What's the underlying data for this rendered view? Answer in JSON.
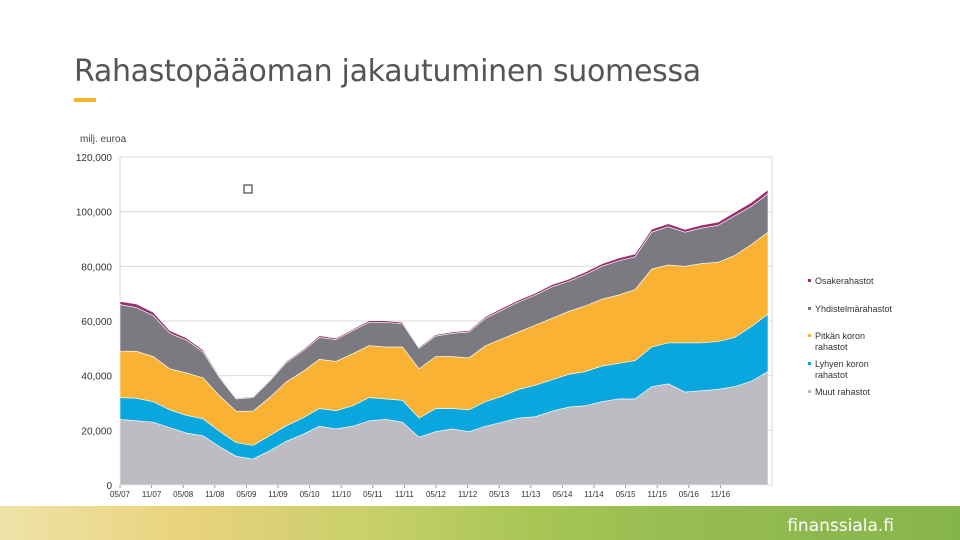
{
  "page": {
    "title": "Rahastopääoman jakautuminen suomessa",
    "unit_label": "milj. euroa",
    "brand": "finanssiala.fi",
    "accent_color": "#f1b52e"
  },
  "chart_data": {
    "type": "area",
    "stacked": true,
    "ylim": [
      0,
      120000
    ],
    "yticks": [
      "0",
      "20,000",
      "40,000",
      "60,000",
      "80,000",
      "100,000",
      "120,000"
    ],
    "ytick_values": [
      0,
      20000,
      40000,
      60000,
      80000,
      100000,
      120000
    ],
    "x_ticks": [
      "05/07",
      "11/07",
      "05/08",
      "11/08",
      "05/09",
      "11/09",
      "05/10",
      "11/10",
      "05/11",
      "11/11",
      "05/12",
      "11/12",
      "05/13",
      "11/13",
      "05/14",
      "11/14",
      "05/15",
      "11/15",
      "05/16",
      "11/16"
    ],
    "grid": true,
    "legend_position": "right",
    "x": [
      "05/07",
      "08/07",
      "11/07",
      "02/08",
      "05/08",
      "08/08",
      "11/08",
      "02/09",
      "05/09",
      "08/09",
      "11/09",
      "02/10",
      "05/10",
      "08/10",
      "11/10",
      "02/11",
      "05/11",
      "08/11",
      "11/11",
      "02/12",
      "05/12",
      "08/12",
      "11/12",
      "02/13",
      "05/13",
      "08/13",
      "11/13",
      "02/14",
      "05/14",
      "08/14",
      "11/14",
      "02/15",
      "05/15",
      "08/15",
      "11/15",
      "02/16",
      "05/16",
      "08/16",
      "11/16",
      "02/17"
    ],
    "series": [
      {
        "name": "Muut rahastot",
        "color": "#bcbcc2",
        "values": [
          24000,
          23500,
          23000,
          21000,
          19000,
          18000,
          14000,
          10500,
          9500,
          12500,
          16000,
          18500,
          21500,
          20500,
          21500,
          23500,
          24000,
          23000,
          17500,
          19500,
          20500,
          19500,
          21500,
          23000,
          24500,
          25000,
          27000,
          28500,
          29000,
          30500,
          31500,
          31500,
          36000,
          37000,
          34000,
          34500,
          35000,
          36000,
          38000,
          41500
        ]
      },
      {
        "name": "Lyhyen koron rahastot",
        "color": "#0aa7df",
        "values": [
          8000,
          8200,
          7500,
          6500,
          6500,
          6200,
          5600,
          5000,
          5000,
          5500,
          5700,
          6000,
          6500,
          6700,
          7500,
          8500,
          7500,
          8000,
          7000,
          8500,
          7500,
          8000,
          9000,
          9500,
          10500,
          11500,
          11500,
          12000,
          12500,
          13000,
          13000,
          14000,
          14500,
          15000,
          18000,
          17500,
          17500,
          18000,
          20000,
          21000
        ]
      },
      {
        "name": "Pitkän koron rahastot",
        "color": "#f9b233",
        "values": [
          17000,
          17200,
          16500,
          15000,
          15500,
          15000,
          13000,
          11500,
          12500,
          14000,
          16000,
          17000,
          18000,
          18000,
          19000,
          19000,
          19000,
          19500,
          18000,
          19000,
          19000,
          19000,
          20500,
          21000,
          21000,
          22000,
          22500,
          23000,
          24000,
          24500,
          25000,
          26000,
          28500,
          28500,
          28000,
          29000,
          29000,
          30000,
          30000,
          30000
        ]
      },
      {
        "name": "Yhdistelmärahastot",
        "color": "#7a7a80",
        "values": [
          17000,
          16000,
          15000,
          13000,
          12000,
          9500,
          6500,
          4500,
          5000,
          6000,
          7000,
          7500,
          8000,
          8000,
          8500,
          8500,
          9000,
          8500,
          7500,
          7500,
          8500,
          9500,
          10000,
          10500,
          11000,
          11000,
          11500,
          11000,
          11500,
          12000,
          12500,
          12000,
          13500,
          14000,
          12500,
          13000,
          13500,
          14500,
          14000,
          14000
        ]
      },
      {
        "name": "Osakerahastot",
        "color": "#9b2d6e",
        "values": [
          1200,
          1300,
          1200,
          1000,
          800,
          700,
          500,
          300,
          300,
          400,
          500,
          500,
          600,
          500,
          500,
          600,
          600,
          500,
          400,
          500,
          500,
          500,
          600,
          700,
          700,
          700,
          800,
          800,
          900,
          900,
          1000,
          1000,
          1100,
          1100,
          1000,
          1100,
          1200,
          1300,
          1400,
          1500
        ]
      }
    ]
  }
}
